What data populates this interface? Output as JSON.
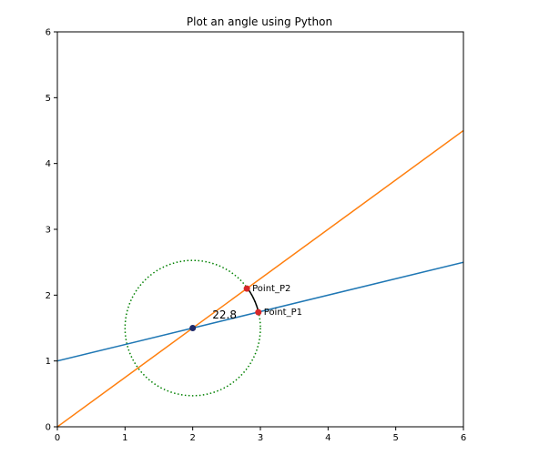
{
  "chart_data": {
    "type": "line",
    "title": "Plot an angle using Python",
    "xlabel": "",
    "ylabel": "",
    "xlim": [
      0,
      6
    ],
    "ylim": [
      0,
      6
    ],
    "xticks": [
      0,
      1,
      2,
      3,
      4,
      5,
      6
    ],
    "yticks": [
      0,
      1,
      2,
      3,
      4,
      5,
      6
    ],
    "grid": false,
    "series": [
      {
        "color": "#1f77b4",
        "x": [
          0,
          6
        ],
        "y": [
          1,
          2.5
        ]
      },
      {
        "color": "#ff7f0e",
        "x": [
          0,
          6
        ],
        "y": [
          0,
          4.5
        ]
      }
    ],
    "circle": {
      "center": [
        2,
        1.5
      ],
      "radius": 1,
      "color": "#008000",
      "style": "dotted"
    },
    "center_point": {
      "x": 2,
      "y": 1.5,
      "color": "#1f2a6b"
    },
    "points": [
      {
        "label": "Point_P1",
        "x": 2.97,
        "y": 1.74,
        "color": "#d62728"
      },
      {
        "label": "Point_P2",
        "x": 2.8,
        "y": 2.1,
        "color": "#d62728"
      }
    ],
    "angle": {
      "label": "22.8",
      "x": 2.47,
      "y": 1.7
    }
  }
}
